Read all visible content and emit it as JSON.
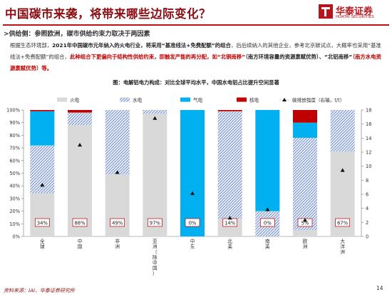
{
  "header": {
    "title": "中国碳市来袭，将带来哪些边际变化？",
    "logo_cn": "华泰证券",
    "logo_en": "HUATAI SECURITIES"
  },
  "subhead": ">供给侧：参照欧洲，碳市供给约束力取决于两因素",
  "paragraph": {
    "p1": "根据生态环境部，",
    "p2": "2021年中国碳市元年纳入的火电行业，将采用“基准线法+免费配额”的组合",
    "p3": "，后后续纳入的其他企业，参考北京碳试点，大概率也采用“基准线法+免费配额”的组合，",
    "p4": "此种组合下更偏向于结构性供给约束，即触发产能的再分配，如“北铜南移”",
    "p5": "（南方环境容量的资源禀赋优势）、“北铝南移”",
    "p6": "（南方水电资源禀赋优势）等。"
  },
  "chart_caption": "图：电解铝电力构成：对比全球平均水平，中国水电铝占比提升空间显著",
  "colors": {
    "thermal": "#d9d9d9",
    "hydro": "#d4dff0",
    "gas": "#00b0f0",
    "nuclear": "#c00000",
    "marker": "#111111",
    "label_box_border": "#c00000"
  },
  "chart_data": {
    "type": "bar",
    "stacked": true,
    "percent_stacked": true,
    "categories": [
      "全球",
      "中国",
      "非洲",
      "亚洲（除中国）",
      "中东",
      "北美",
      "南美",
      "欧洲",
      "大洋洲"
    ],
    "series": [
      {
        "name": "火电",
        "values": [
          34,
          88,
          49,
          97,
          0,
          14,
          0,
          5,
          67
        ]
      },
      {
        "name": "水电",
        "values": [
          38,
          10,
          51,
          3,
          0,
          85,
          20,
          73,
          33
        ]
      },
      {
        "name": "气电",
        "values": [
          27,
          0,
          0,
          0,
          100,
          0,
          80,
          12,
          0
        ]
      },
      {
        "name": "核电",
        "values": [
          1,
          2,
          0,
          0,
          0,
          1,
          0,
          10,
          0
        ]
      }
    ],
    "line_series": {
      "name": "碳排放强度（右轴，t/t）",
      "axis": "right",
      "values": [
        7.3,
        13.0,
        9.1,
        16.8,
        6.1,
        2.6,
        3.8,
        2.3,
        9.4
      ]
    },
    "bar_labels": [
      "34%",
      "88%",
      "49%",
      "97%",
      "0%",
      "14%",
      "0%",
      "5%",
      "67%"
    ],
    "ylim": [
      0,
      100
    ],
    "y_ticks": [
      "0%",
      "10%",
      "20%",
      "30%",
      "40%",
      "50%",
      "60%",
      "70%",
      "80%",
      "90%",
      "100%"
    ],
    "y2lim": [
      0,
      18
    ],
    "y2_ticks": [
      "0",
      "2",
      "4",
      "6",
      "8",
      "10",
      "12",
      "14",
      "16",
      "18"
    ],
    "legend": [
      "火电",
      "水电",
      "气电",
      "核电",
      "碳排放强度（右轴，t/t）"
    ],
    "legend_position": "top",
    "grid": false
  },
  "footer": {
    "source": "资料来源：IAI，华泰证券研究所",
    "page": "14"
  }
}
